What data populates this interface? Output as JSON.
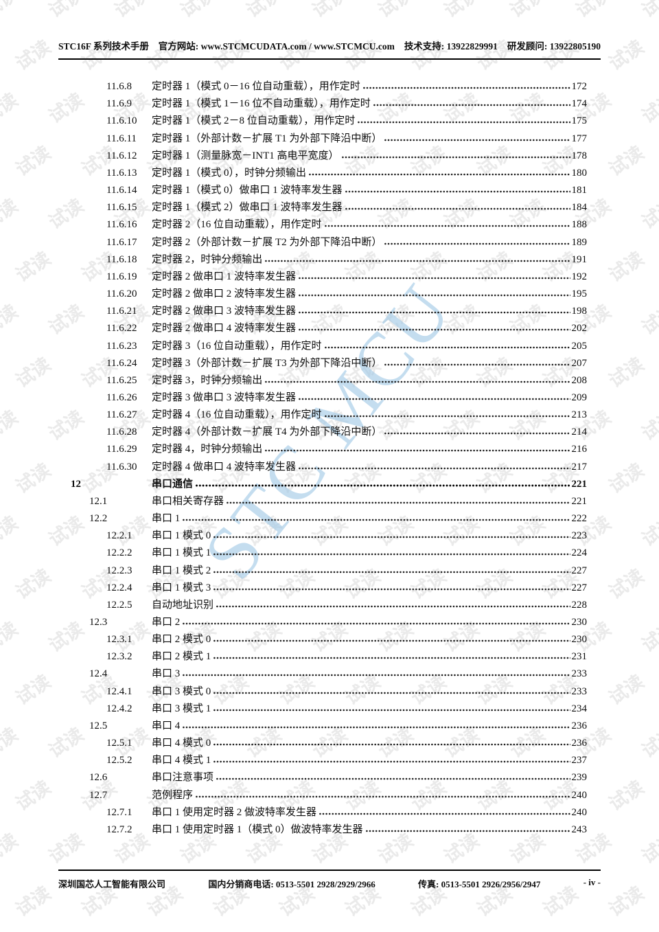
{
  "header": {
    "manual_title": "STC16F 系列技术手册",
    "website": "官方网站: www.STCMCUDATA.com / www.STCMCU.com",
    "tech_support": "技术支持: 13922829991",
    "rd_consultant": "研发顾问: 13922805190"
  },
  "watermarks": {
    "tile_text": "试读",
    "tile_color": "#eaeaea",
    "big_text": "STC MCU",
    "big_color": "#9ec8e6"
  },
  "toc": {
    "entries": [
      {
        "num": "11.6.8",
        "title": "定时器 1（模式 0－16 位自动重载），用作定时",
        "page": "172",
        "level": 3
      },
      {
        "num": "11.6.9",
        "title": "定时器 1（模式 1－16 位不自动重载），用作定时",
        "page": "174",
        "level": 3
      },
      {
        "num": "11.6.10",
        "title": "定时器 1（模式 2－8 位自动重载），用作定时",
        "page": "175",
        "level": 3
      },
      {
        "num": "11.6.11",
        "title": "定时器 1（外部计数－扩展 T1 为外部下降沿中断）",
        "page": "177",
        "level": 3
      },
      {
        "num": "11.6.12",
        "title": "定时器 1（测量脉宽－INT1 高电平宽度）",
        "page": "178",
        "level": 3
      },
      {
        "num": "11.6.13",
        "title": "定时器 1（模式 0），时钟分频输出",
        "page": "180",
        "level": 3
      },
      {
        "num": "11.6.14",
        "title": "定时器 1（模式 0）做串口 1 波特率发生器",
        "page": "181",
        "level": 3
      },
      {
        "num": "11.6.15",
        "title": "定时器 1（模式 2）做串口 1 波特率发生器",
        "page": "184",
        "level": 3
      },
      {
        "num": "11.6.16",
        "title": "定时器 2（16 位自动重载），用作定时",
        "page": "188",
        "level": 3
      },
      {
        "num": "11.6.17",
        "title": "定时器 2（外部计数－扩展 T2 为外部下降沿中断）",
        "page": "189",
        "level": 3
      },
      {
        "num": "11.6.18",
        "title": "定时器 2，时钟分频输出",
        "page": "191",
        "level": 3
      },
      {
        "num": "11.6.19",
        "title": "定时器 2 做串口 1 波特率发生器",
        "page": "192",
        "level": 3
      },
      {
        "num": "11.6.20",
        "title": "定时器 2 做串口 2 波特率发生器",
        "page": "195",
        "level": 3
      },
      {
        "num": "11.6.21",
        "title": "定时器 2 做串口 3 波特率发生器",
        "page": "198",
        "level": 3
      },
      {
        "num": "11.6.22",
        "title": "定时器 2 做串口 4 波特率发生器",
        "page": "202",
        "level": 3
      },
      {
        "num": "11.6.23",
        "title": "定时器 3（16 位自动重载），用作定时",
        "page": "205",
        "level": 3
      },
      {
        "num": "11.6.24",
        "title": "定时器 3（外部计数－扩展 T3 为外部下降沿中断）",
        "page": "207",
        "level": 3
      },
      {
        "num": "11.6.25",
        "title": "定时器 3，时钟分频输出",
        "page": "208",
        "level": 3
      },
      {
        "num": "11.6.26",
        "title": "定时器 3 做串口 3 波特率发生器",
        "page": "209",
        "level": 3
      },
      {
        "num": "11.6.27",
        "title": "定时器 4（16 位自动重载），用作定时",
        "page": "213",
        "level": 3
      },
      {
        "num": "11.6.28",
        "title": "定时器 4（外部计数－扩展 T4 为外部下降沿中断）",
        "page": "214",
        "level": 3
      },
      {
        "num": "11.6.29",
        "title": "定时器 4，时钟分频输出",
        "page": "216",
        "level": 3
      },
      {
        "num": "11.6.30",
        "title": "定时器 4 做串口 4 波特率发生器",
        "page": "217",
        "level": 3
      },
      {
        "num": "12",
        "title": "串口通信",
        "page": "221",
        "level": 1
      },
      {
        "num": "12.1",
        "title": "串口相关寄存器",
        "page": "221",
        "level": 2
      },
      {
        "num": "12.2",
        "title": "串口 1",
        "page": "222",
        "level": 2
      },
      {
        "num": "12.2.1",
        "title": "串口 1 模式 0",
        "page": "223",
        "level": 3
      },
      {
        "num": "12.2.2",
        "title": "串口 1 模式 1",
        "page": "224",
        "level": 3
      },
      {
        "num": "12.2.3",
        "title": "串口 1 模式 2",
        "page": "227",
        "level": 3
      },
      {
        "num": "12.2.4",
        "title": "串口 1 模式 3",
        "page": "227",
        "level": 3
      },
      {
        "num": "12.2.5",
        "title": "自动地址识别",
        "page": "228",
        "level": 3
      },
      {
        "num": "12.3",
        "title": "串口 2",
        "page": "230",
        "level": 2
      },
      {
        "num": "12.3.1",
        "title": "串口 2 模式 0",
        "page": "230",
        "level": 3
      },
      {
        "num": "12.3.2",
        "title": "串口 2 模式 1",
        "page": "231",
        "level": 3
      },
      {
        "num": "12.4",
        "title": "串口 3",
        "page": "233",
        "level": 2
      },
      {
        "num": "12.4.1",
        "title": "串口 3 模式 0",
        "page": "233",
        "level": 3
      },
      {
        "num": "12.4.2",
        "title": "串口 3 模式 1",
        "page": "234",
        "level": 3
      },
      {
        "num": "12.5",
        "title": "串口 4",
        "page": "236",
        "level": 2
      },
      {
        "num": "12.5.1",
        "title": "串口 4 模式 0",
        "page": "236",
        "level": 3
      },
      {
        "num": "12.5.2",
        "title": "串口 4 模式 1",
        "page": "237",
        "level": 3
      },
      {
        "num": "12.6",
        "title": "串口注意事项",
        "page": "239",
        "level": 2
      },
      {
        "num": "12.7",
        "title": "范例程序",
        "page": "240",
        "level": 2
      },
      {
        "num": "12.7.1",
        "title": "串口 1 使用定时器 2 做波特率发生器",
        "page": "240",
        "level": 3
      },
      {
        "num": "12.7.2",
        "title": "串口 1 使用定时器 1（模式 0）做波特率发生器",
        "page": "243",
        "level": 3
      }
    ]
  },
  "footer": {
    "company": "深圳国芯人工智能有限公司",
    "distributor_phone": "国内分销商电话: 0513-5501 2928/2929/2966",
    "fax": "传真: 0513-5501 2926/2956/2947",
    "page_label": "-  iv  -"
  }
}
